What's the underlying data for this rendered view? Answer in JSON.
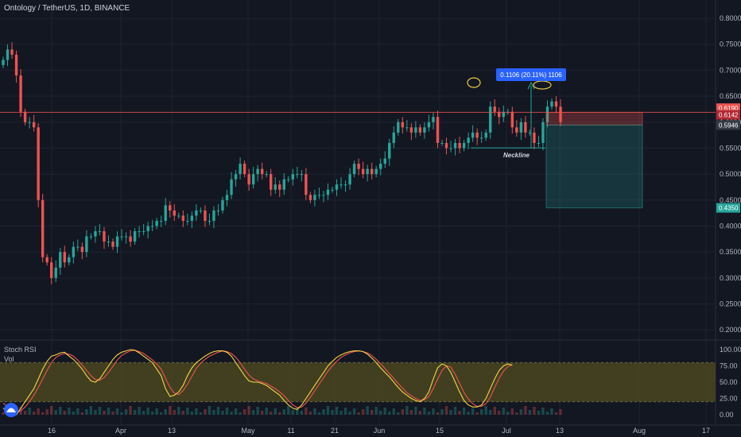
{
  "symbol_title": "Ontology / TetherUS, 1D, BINANCE",
  "indicator": {
    "name": "Stoch RSI",
    "vol_label": "Vol"
  },
  "annotations": {
    "measure_text": "0.1106 (20.11%) 1106",
    "neckline_label": "Neckline"
  },
  "price_labels": {
    "top": "0.6190",
    "mid": "0.6142",
    "bottom": "0.5946",
    "target": "0.4350"
  },
  "colors": {
    "background": "#131722",
    "up": "#26a69a",
    "down": "#ef5350",
    "grid": "#1f2330",
    "stoch_k": "#f5d547",
    "stoch_d": "#ef5350",
    "band": "#4a4720",
    "measure": "#2962ff",
    "highlight": "#e8c547"
  },
  "chart_data": [
    {
      "type": "candlestick",
      "title": "Ontology / TetherUS, 1D, BINANCE",
      "ylim": [
        0.185,
        0.82
      ],
      "y_ticks": [
        "0.8000",
        "0.7500",
        "0.7000",
        "0.6500",
        "0.6000",
        "0.5500",
        "0.5000",
        "0.4500",
        "0.4000",
        "0.3500",
        "0.3000",
        "0.2500",
        "0.2000"
      ],
      "x_ticks": [
        "16",
        "Apr",
        "13",
        "May",
        "11",
        "21",
        "Jun",
        "15",
        "Jul",
        "13",
        "Aug",
        "17"
      ],
      "closes": [
        0.72,
        0.74,
        0.73,
        0.69,
        0.62,
        0.6,
        0.6,
        0.59,
        0.45,
        0.34,
        0.33,
        0.3,
        0.32,
        0.35,
        0.33,
        0.34,
        0.36,
        0.36,
        0.35,
        0.38,
        0.38,
        0.39,
        0.39,
        0.37,
        0.37,
        0.36,
        0.38,
        0.38,
        0.38,
        0.37,
        0.39,
        0.39,
        0.39,
        0.4,
        0.4,
        0.41,
        0.41,
        0.44,
        0.43,
        0.42,
        0.42,
        0.41,
        0.41,
        0.42,
        0.43,
        0.43,
        0.41,
        0.41,
        0.43,
        0.43,
        0.45,
        0.46,
        0.49,
        0.5,
        0.52,
        0.5,
        0.48,
        0.5,
        0.51,
        0.5,
        0.5,
        0.47,
        0.48,
        0.47,
        0.49,
        0.49,
        0.5,
        0.5,
        0.5,
        0.46,
        0.45,
        0.46,
        0.46,
        0.46,
        0.47,
        0.47,
        0.48,
        0.48,
        0.48,
        0.5,
        0.52,
        0.51,
        0.5,
        0.51,
        0.5,
        0.51,
        0.52,
        0.53,
        0.56,
        0.58,
        0.6,
        0.59,
        0.59,
        0.58,
        0.59,
        0.58,
        0.59,
        0.6,
        0.61,
        0.56,
        0.56,
        0.55,
        0.55,
        0.56,
        0.55,
        0.56,
        0.57,
        0.58,
        0.57,
        0.57,
        0.58,
        0.63,
        0.62,
        0.61,
        0.62,
        0.62,
        0.59,
        0.58,
        0.6,
        0.58,
        0.58,
        0.56,
        0.56,
        0.6,
        0.63,
        0.64,
        0.63,
        0.6
      ]
    },
    {
      "type": "line",
      "name": "Stoch RSI",
      "ylim": [
        0,
        100
      ],
      "y_ticks": [
        "100.00",
        "75.00",
        "50.00",
        "25.00",
        "0.00"
      ],
      "band": [
        20,
        80
      ],
      "series": [
        {
          "values": [
            10,
            5,
            0,
            0,
            10,
            20,
            30,
            40,
            55,
            70,
            82,
            90,
            92,
            95,
            96,
            90,
            85,
            78,
            70,
            60,
            52,
            50,
            55,
            65,
            75,
            85,
            92,
            96,
            98,
            100,
            99,
            95,
            90,
            85,
            80,
            70,
            60,
            40,
            28,
            30,
            35,
            45,
            60,
            72,
            80,
            85,
            90,
            94,
            97,
            98,
            98,
            96,
            90,
            80,
            70,
            60,
            52,
            50,
            50,
            48,
            45,
            40,
            35,
            30,
            22,
            15,
            10,
            8,
            15,
            25,
            35,
            45,
            55,
            65,
            75,
            82,
            88,
            92,
            95,
            97,
            98,
            98,
            97,
            93,
            87,
            80,
            72,
            65,
            58,
            50,
            42,
            35,
            30,
            25,
            22,
            20,
            25,
            35,
            55,
            72,
            78,
            75,
            65,
            50,
            35,
            22,
            15,
            12,
            12,
            15,
            25,
            40,
            55,
            68,
            75,
            78,
            76
          ]
        },
        {
          "values": [
            18,
            12,
            7,
            4,
            6,
            12,
            20,
            30,
            42,
            55,
            68,
            80,
            88,
            92,
            94,
            93,
            90,
            84,
            76,
            68,
            60,
            54,
            53,
            57,
            65,
            74,
            84,
            91,
            95,
            98,
            99,
            97,
            94,
            89,
            84,
            78,
            70,
            56,
            42,
            33,
            31,
            37,
            47,
            59,
            71,
            79,
            85,
            90,
            93,
            96,
            98,
            97,
            94,
            88,
            80,
            70,
            61,
            55,
            52,
            50,
            48,
            44,
            40,
            35,
            29,
            22,
            15,
            11,
            12,
            18,
            27,
            37,
            47,
            57,
            67,
            75,
            82,
            88,
            92,
            95,
            97,
            98,
            97,
            95,
            91,
            85,
            78,
            71,
            63,
            56,
            48,
            41,
            34,
            29,
            25,
            22,
            23,
            28,
            40,
            55,
            68,
            75,
            73,
            62,
            48,
            34,
            24,
            17,
            13,
            13,
            17,
            27,
            42,
            56,
            67,
            74,
            77
          ]
        }
      ]
    }
  ]
}
